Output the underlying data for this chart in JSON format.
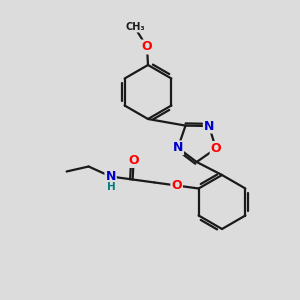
{
  "bg_color": "#dcdcdc",
  "bond_color": "#1a1a1a",
  "atom_colors": {
    "O": "#ff0000",
    "N": "#0000cc",
    "C": "#1a1a1a",
    "H": "#008080"
  }
}
